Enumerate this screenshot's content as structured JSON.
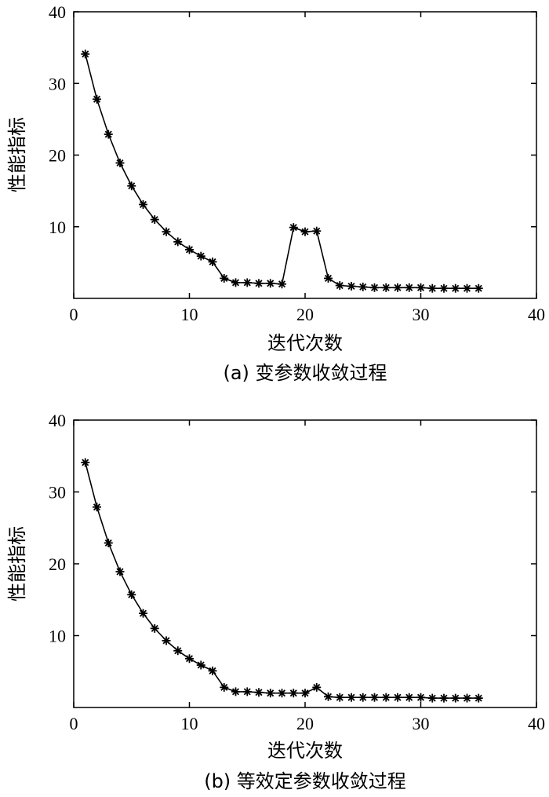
{
  "figure": {
    "subplot_count": 2
  },
  "chart_data": [
    {
      "type": "line",
      "xlabel": "迭代次数",
      "ylabel": "性能指标",
      "caption": "(a) 变参数收敛过程",
      "xlim": [
        0,
        40
      ],
      "ylim": [
        0,
        40
      ],
      "xticks": [
        0,
        10,
        20,
        30,
        40
      ],
      "yticks": [
        10,
        20,
        30,
        40
      ],
      "marker": "asterisk",
      "line_color": "#000000",
      "series": [
        {
          "x": [
            1,
            2,
            3,
            4,
            5,
            6,
            7,
            8,
            9,
            10,
            11,
            12,
            13,
            14,
            15,
            16,
            17,
            18,
            19,
            20,
            21,
            22,
            23,
            24,
            25,
            26,
            27,
            28,
            29,
            30,
            31,
            32,
            33,
            34,
            35
          ],
          "y": [
            34.1,
            27.8,
            22.9,
            18.9,
            15.7,
            13.1,
            11.0,
            9.3,
            7.9,
            6.8,
            5.9,
            5.1,
            2.8,
            2.2,
            2.2,
            2.1,
            2.1,
            2.0,
            9.9,
            9.3,
            9.4,
            2.8,
            1.8,
            1.7,
            1.6,
            1.5,
            1.5,
            1.5,
            1.5,
            1.5,
            1.4,
            1.4,
            1.4,
            1.4,
            1.4
          ]
        }
      ]
    },
    {
      "type": "line",
      "xlabel": "迭代次数",
      "ylabel": "性能指标",
      "caption": "(b) 等效定参数收敛过程",
      "xlim": [
        0,
        40
      ],
      "ylim": [
        0,
        40
      ],
      "xticks": [
        0,
        10,
        20,
        30,
        40
      ],
      "yticks": [
        10,
        20,
        30,
        40
      ],
      "marker": "asterisk",
      "line_color": "#000000",
      "series": [
        {
          "x": [
            1,
            2,
            3,
            4,
            5,
            6,
            7,
            8,
            9,
            10,
            11,
            12,
            13,
            14,
            15,
            16,
            17,
            18,
            19,
            20,
            21,
            22,
            23,
            24,
            25,
            26,
            27,
            28,
            29,
            30,
            31,
            32,
            33,
            34,
            35
          ],
          "y": [
            34.1,
            27.9,
            22.9,
            18.9,
            15.7,
            13.1,
            11.0,
            9.3,
            7.9,
            6.8,
            5.9,
            5.1,
            2.8,
            2.2,
            2.2,
            2.1,
            2.0,
            2.0,
            2.0,
            2.0,
            2.8,
            1.5,
            1.4,
            1.4,
            1.4,
            1.4,
            1.4,
            1.4,
            1.4,
            1.4,
            1.3,
            1.3,
            1.3,
            1.3,
            1.3
          ]
        }
      ]
    }
  ]
}
